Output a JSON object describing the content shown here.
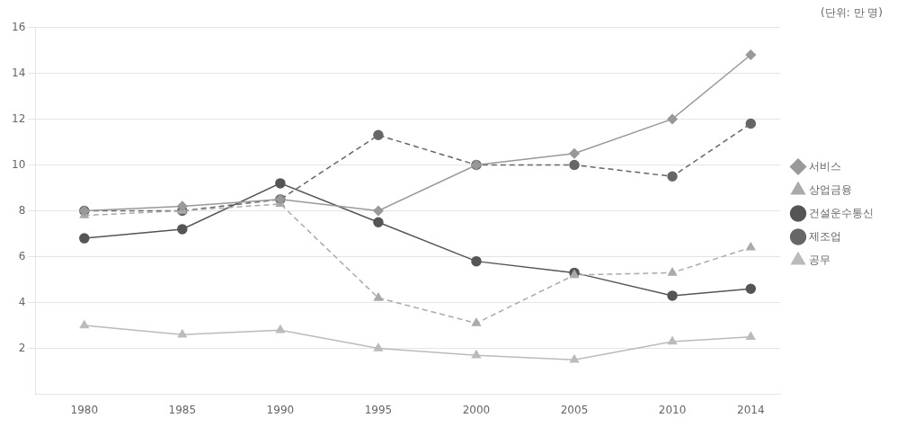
{
  "chart_data": {
    "type": "line",
    "subtitle": "(단위: 만 명)",
    "x": [
      1980,
      1985,
      1990,
      1995,
      2000,
      2005,
      2010,
      2014
    ],
    "series": [
      {
        "name": "서비스",
        "color": "#999999",
        "marker": "diamond",
        "line_style": "solid",
        "values": [
          8.0,
          8.2,
          8.5,
          8.0,
          10.0,
          10.5,
          12.0,
          14.8
        ]
      },
      {
        "name": "상업금융",
        "color": "#aaaaaa",
        "marker": "triangle",
        "line_style": "dashed",
        "values": [
          7.8,
          8.0,
          8.3,
          4.2,
          3.1,
          5.2,
          5.3,
          6.4
        ]
      },
      {
        "name": "건설운수통신",
        "color": "#555555",
        "marker": "circle",
        "line_style": "solid",
        "values": [
          6.8,
          7.2,
          9.2,
          7.5,
          5.8,
          5.3,
          4.3,
          4.6
        ]
      },
      {
        "name": "제조업",
        "color": "#666666",
        "marker": "circle",
        "line_style": "dashed",
        "values": [
          8.0,
          8.0,
          8.5,
          11.3,
          10.0,
          10.0,
          9.5,
          11.8
        ]
      },
      {
        "name": "공무",
        "color": "#bbbbbb",
        "marker": "triangle",
        "line_style": "solid",
        "values": [
          3.0,
          2.6,
          2.8,
          2.0,
          1.7,
          1.5,
          2.3,
          2.5
        ]
      }
    ],
    "xlim": [
      1977.5,
      2015.5
    ],
    "xticks": [
      1980,
      1985,
      1990,
      1995,
      2000,
      2005,
      2010,
      2014
    ],
    "ylim": [
      0,
      16
    ],
    "yticks": [
      2,
      4,
      6,
      8,
      10,
      12,
      14,
      16
    ],
    "grid": "y",
    "legend": "right"
  }
}
